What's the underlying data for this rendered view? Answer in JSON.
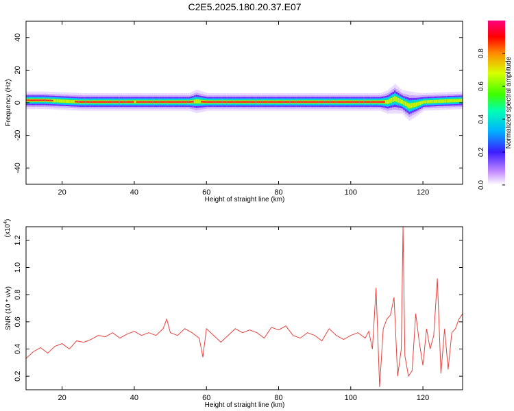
{
  "chart_data": [
    {
      "type": "heatmap",
      "title": "C2E5.2025.180.20.37.E07",
      "xlabel": "Height of straight line (km)",
      "ylabel": "Frequency (Hz)",
      "xlim": [
        10,
        131
      ],
      "ylim": [
        -50,
        50
      ],
      "xticks": [
        20,
        40,
        60,
        80,
        100,
        120
      ],
      "yticks": [
        -40,
        -20,
        0,
        20,
        40
      ],
      "colorbar": {
        "label": "Normalized spectral amplitude",
        "range": [
          0,
          1
        ],
        "ticks": [
          "0.0",
          "0.2",
          "0.4",
          "0.6",
          "0.8"
        ],
        "colormap": "rainbow (violet to red)"
      },
      "band": {
        "x": [
          11,
          15,
          20,
          25,
          30,
          35,
          40,
          45,
          50,
          55,
          57,
          60,
          65,
          70,
          75,
          80,
          85,
          90,
          95,
          100,
          105,
          108,
          110,
          112,
          114,
          116,
          118,
          120,
          125,
          131
        ],
        "center_hz": [
          1.5,
          1.5,
          1.0,
          0.5,
          0.5,
          0.5,
          0.5,
          0.5,
          0.5,
          0.5,
          0.8,
          0.5,
          0.5,
          0.5,
          0.5,
          0.5,
          0.5,
          0.5,
          0.5,
          0.5,
          0.5,
          0.5,
          0.5,
          2.5,
          0.5,
          -2.0,
          -1.0,
          0.5,
          1.0,
          1.5
        ],
        "halfwidth_hz": [
          3,
          3,
          3,
          3,
          3,
          3,
          3,
          3,
          3,
          3,
          4,
          3,
          3,
          3,
          3,
          3,
          3,
          3,
          3,
          3,
          3,
          3,
          4,
          5,
          4,
          5,
          4,
          3,
          3,
          3
        ],
        "peak_amplitude": [
          0.95,
          0.95,
          0.75,
          0.9,
          0.9,
          0.9,
          0.85,
          0.9,
          0.9,
          0.9,
          0.8,
          0.9,
          0.9,
          0.9,
          0.9,
          0.9,
          0.9,
          0.9,
          0.9,
          0.9,
          0.9,
          0.9,
          0.8,
          0.85,
          0.8,
          0.75,
          0.8,
          0.8,
          0.85,
          0.85
        ]
      }
    },
    {
      "type": "line",
      "title": "",
      "xlabel": "Height of straight line (km)",
      "ylabel": "SNR (10 * v/v)",
      "scale_label": "(x10",
      "scale_exponent": "4",
      "xlim": [
        10,
        131
      ],
      "ylim": [
        0.1,
        1.3
      ],
      "xticks": [
        20,
        40,
        60,
        80,
        100,
        120
      ],
      "yticks": [
        "0.2",
        "0.4",
        "0.6",
        "0.8",
        "1.0",
        "1.2"
      ],
      "series": [
        {
          "color": "#e8413c",
          "x": [
            10,
            12,
            14,
            16,
            18,
            20,
            22,
            24,
            26,
            28,
            30,
            32,
            34,
            36,
            38,
            40,
            42,
            44,
            46,
            48,
            49,
            50,
            52,
            54,
            56,
            58,
            59,
            60,
            62,
            64,
            66,
            68,
            70,
            72,
            74,
            76,
            78,
            80,
            82,
            84,
            86,
            88,
            90,
            92,
            94,
            96,
            98,
            100,
            102,
            104,
            105,
            106,
            107,
            108,
            109,
            110,
            111,
            112,
            113,
            114,
            114.5,
            115,
            116,
            117,
            118,
            119,
            120,
            121,
            122,
            123,
            124,
            125,
            126,
            127,
            128,
            129,
            130,
            131
          ],
          "y": [
            0.33,
            0.38,
            0.41,
            0.37,
            0.42,
            0.44,
            0.4,
            0.46,
            0.45,
            0.47,
            0.5,
            0.49,
            0.52,
            0.48,
            0.51,
            0.53,
            0.5,
            0.52,
            0.5,
            0.55,
            0.62,
            0.52,
            0.5,
            0.55,
            0.52,
            0.48,
            0.34,
            0.55,
            0.5,
            0.45,
            0.5,
            0.55,
            0.52,
            0.54,
            0.52,
            0.48,
            0.56,
            0.54,
            0.57,
            0.5,
            0.48,
            0.52,
            0.5,
            0.46,
            0.55,
            0.5,
            0.47,
            0.5,
            0.52,
            0.48,
            0.53,
            0.4,
            0.85,
            0.12,
            0.55,
            0.62,
            0.65,
            0.78,
            0.2,
            0.4,
            1.3,
            0.35,
            0.2,
            0.24,
            0.66,
            0.45,
            0.28,
            0.55,
            0.4,
            0.5,
            0.92,
            0.22,
            0.55,
            0.25,
            0.52,
            0.55,
            0.62,
            0.66
          ]
        }
      ]
    }
  ]
}
